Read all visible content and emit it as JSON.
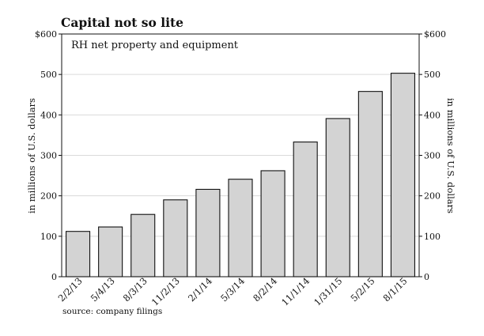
{
  "chart_data": {
    "type": "bar",
    "title": "Capital not so lite",
    "subtitle": "RH net property and equipment",
    "ylabel_left": "in millions of U.S. dollars",
    "ylabel_right": "in millions of U.S. dollars",
    "xlabel": "",
    "ylim": [
      0,
      600
    ],
    "yticks_left": [
      "$600",
      "500",
      "400",
      "300",
      "200",
      "100",
      "0"
    ],
    "yticks_right": [
      "$600",
      "500",
      "400",
      "300",
      "200",
      "100",
      "0"
    ],
    "categories": [
      "2/2/13",
      "5/4/13",
      "8/3/13",
      "11/2/13",
      "2/1/14",
      "5/3/14",
      "8/2/14",
      "11/1/14",
      "1/31/15",
      "5/2/15",
      "8/1/15"
    ],
    "values": [
      112,
      123,
      154,
      190,
      216,
      241,
      262,
      333,
      391,
      458,
      503
    ],
    "grid": true,
    "legend": "none",
    "colors": {
      "bar_fill": "#d3d3d3",
      "bar_stroke": "#111111",
      "gridline": "#dadada"
    },
    "source": "source: company filings"
  }
}
